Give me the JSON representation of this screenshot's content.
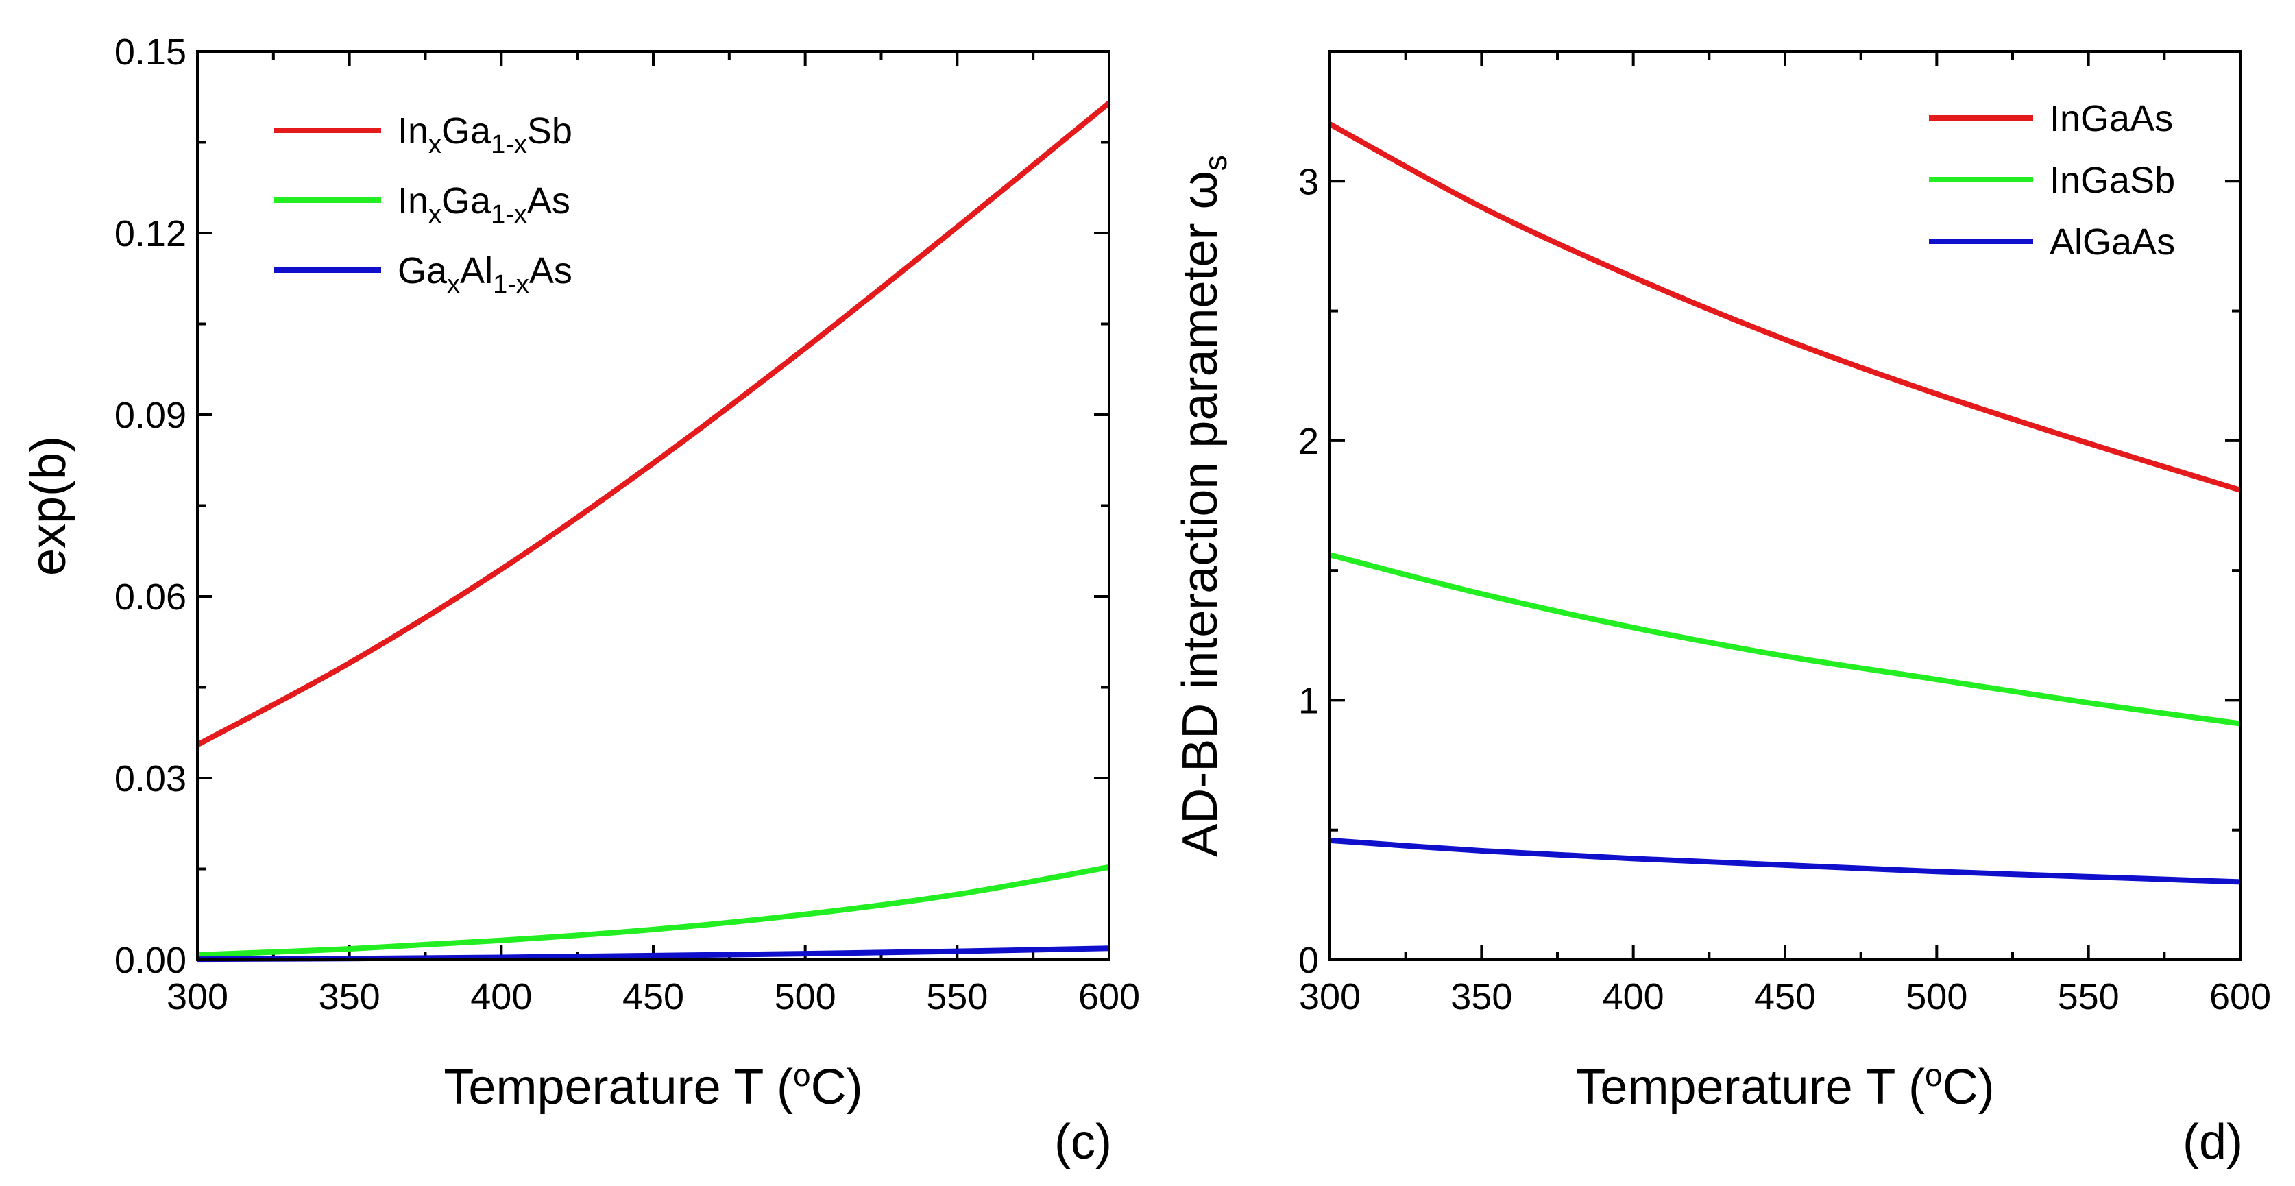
{
  "chart_data": [
    {
      "type": "line",
      "panel_label": "(c)",
      "xlabel_prefix": "Temperature T (",
      "xlabel_sup": "o",
      "xlabel_suffix": "C)",
      "ylabel": "exp(b)",
      "xlim": [
        300,
        600
      ],
      "ylim": [
        0,
        0.15
      ],
      "x_ticks": [
        "300",
        "350",
        "400",
        "450",
        "500",
        "550",
        "600"
      ],
      "y_ticks": [
        "0.00",
        "0.03",
        "0.06",
        "0.09",
        "0.12",
        "0.15"
      ],
      "legend_position": "top-left",
      "series": [
        {
          "name": "InxGa1-xSb",
          "label_parts": [
            "In",
            "x",
            "Ga",
            "1-x",
            "Sb"
          ],
          "color": "#e41a1c",
          "x": [
            300,
            350,
            400,
            450,
            500,
            550,
            600
          ],
          "y": [
            0.0355,
            0.049,
            0.0645,
            0.082,
            0.101,
            0.121,
            0.1415
          ]
        },
        {
          "name": "InxGa1-xAs",
          "label_parts": [
            "In",
            "x",
            "Ga",
            "1-x",
            "As"
          ],
          "color": "#22ee22",
          "x": [
            300,
            350,
            400,
            450,
            500,
            550,
            600
          ],
          "y": [
            0.0008,
            0.0018,
            0.0032,
            0.005,
            0.0075,
            0.0108,
            0.0153
          ]
        },
        {
          "name": "GaxAl1-xAs",
          "label_parts": [
            "Ga",
            "x",
            "Al",
            "1-x",
            "As"
          ],
          "color": "#1010cc",
          "x": [
            300,
            350,
            400,
            450,
            500,
            550,
            600
          ],
          "y": [
            0.0001,
            0.0002,
            0.0004,
            0.0007,
            0.001,
            0.0014,
            0.0019
          ]
        }
      ]
    },
    {
      "type": "line",
      "panel_label": "(d)",
      "xlabel_prefix": "Temperature T (",
      "xlabel_sup": "o",
      "xlabel_suffix": "C)",
      "ylabel": "AD-BD interaction parameter ω",
      "ylabel_sub": "s",
      "xlim": [
        300,
        600
      ],
      "ylim": [
        0,
        3.5
      ],
      "x_ticks": [
        "300",
        "350",
        "400",
        "450",
        "500",
        "550",
        "600"
      ],
      "y_ticks": [
        "0",
        "1",
        "2",
        "3"
      ],
      "legend_position": "top-right",
      "series": [
        {
          "name": "InGaAs",
          "color": "#e41a1c",
          "x": [
            300,
            350,
            400,
            450,
            500,
            550,
            600
          ],
          "y": [
            3.22,
            2.9,
            2.63,
            2.39,
            2.18,
            1.99,
            1.81
          ]
        },
        {
          "name": "InGaSb",
          "color": "#22ee22",
          "x": [
            300,
            350,
            400,
            450,
            500,
            550,
            600
          ],
          "y": [
            1.56,
            1.41,
            1.28,
            1.17,
            1.08,
            0.99,
            0.91
          ]
        },
        {
          "name": "AlGaAs",
          "color": "#1010cc",
          "x": [
            300,
            350,
            400,
            450,
            500,
            550,
            600
          ],
          "y": [
            0.46,
            0.42,
            0.39,
            0.365,
            0.34,
            0.32,
            0.3
          ]
        }
      ]
    }
  ]
}
